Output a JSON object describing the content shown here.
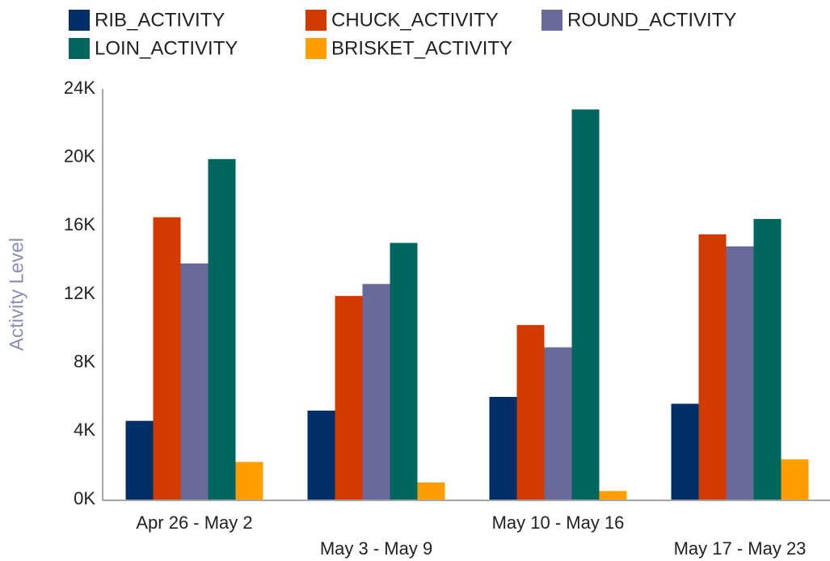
{
  "chart_data": {
    "type": "bar",
    "y_axis_label": "Activity Level",
    "categories": [
      "Apr 26 - May 2",
      "May 3 - May 9",
      "May 10 - May 16",
      "May 17 - May 23"
    ],
    "series": [
      {
        "name": "RIB_ACTIVITY",
        "color": "#002f67",
        "values": [
          4600,
          5200,
          6000,
          5600
        ]
      },
      {
        "name": "CHUCK_ACTIVITY",
        "color": "#d23b00",
        "values": [
          16500,
          11900,
          10200,
          15500
        ]
      },
      {
        "name": "ROUND_ACTIVITY",
        "color": "#6a6a9a",
        "values": [
          13800,
          12600,
          8900,
          14800
        ]
      },
      {
        "name": "LOIN_ACTIVITY",
        "color": "#00665e",
        "values": [
          19900,
          15000,
          22800,
          16400
        ]
      },
      {
        "name": "BRISKET_ACTIVITY",
        "color": "#ff9e00",
        "values": [
          2200,
          1000,
          500,
          2350
        ]
      }
    ],
    "ylim": [
      0,
      24000
    ],
    "yticks": [
      {
        "value": 0,
        "label": "0K"
      },
      {
        "value": 4000,
        "label": "4K"
      },
      {
        "value": 8000,
        "label": "8K"
      },
      {
        "value": 12000,
        "label": "12K"
      },
      {
        "value": 16000,
        "label": "16K"
      },
      {
        "value": 20000,
        "label": "20K"
      },
      {
        "value": 24000,
        "label": "24K"
      }
    ],
    "grid": false
  }
}
